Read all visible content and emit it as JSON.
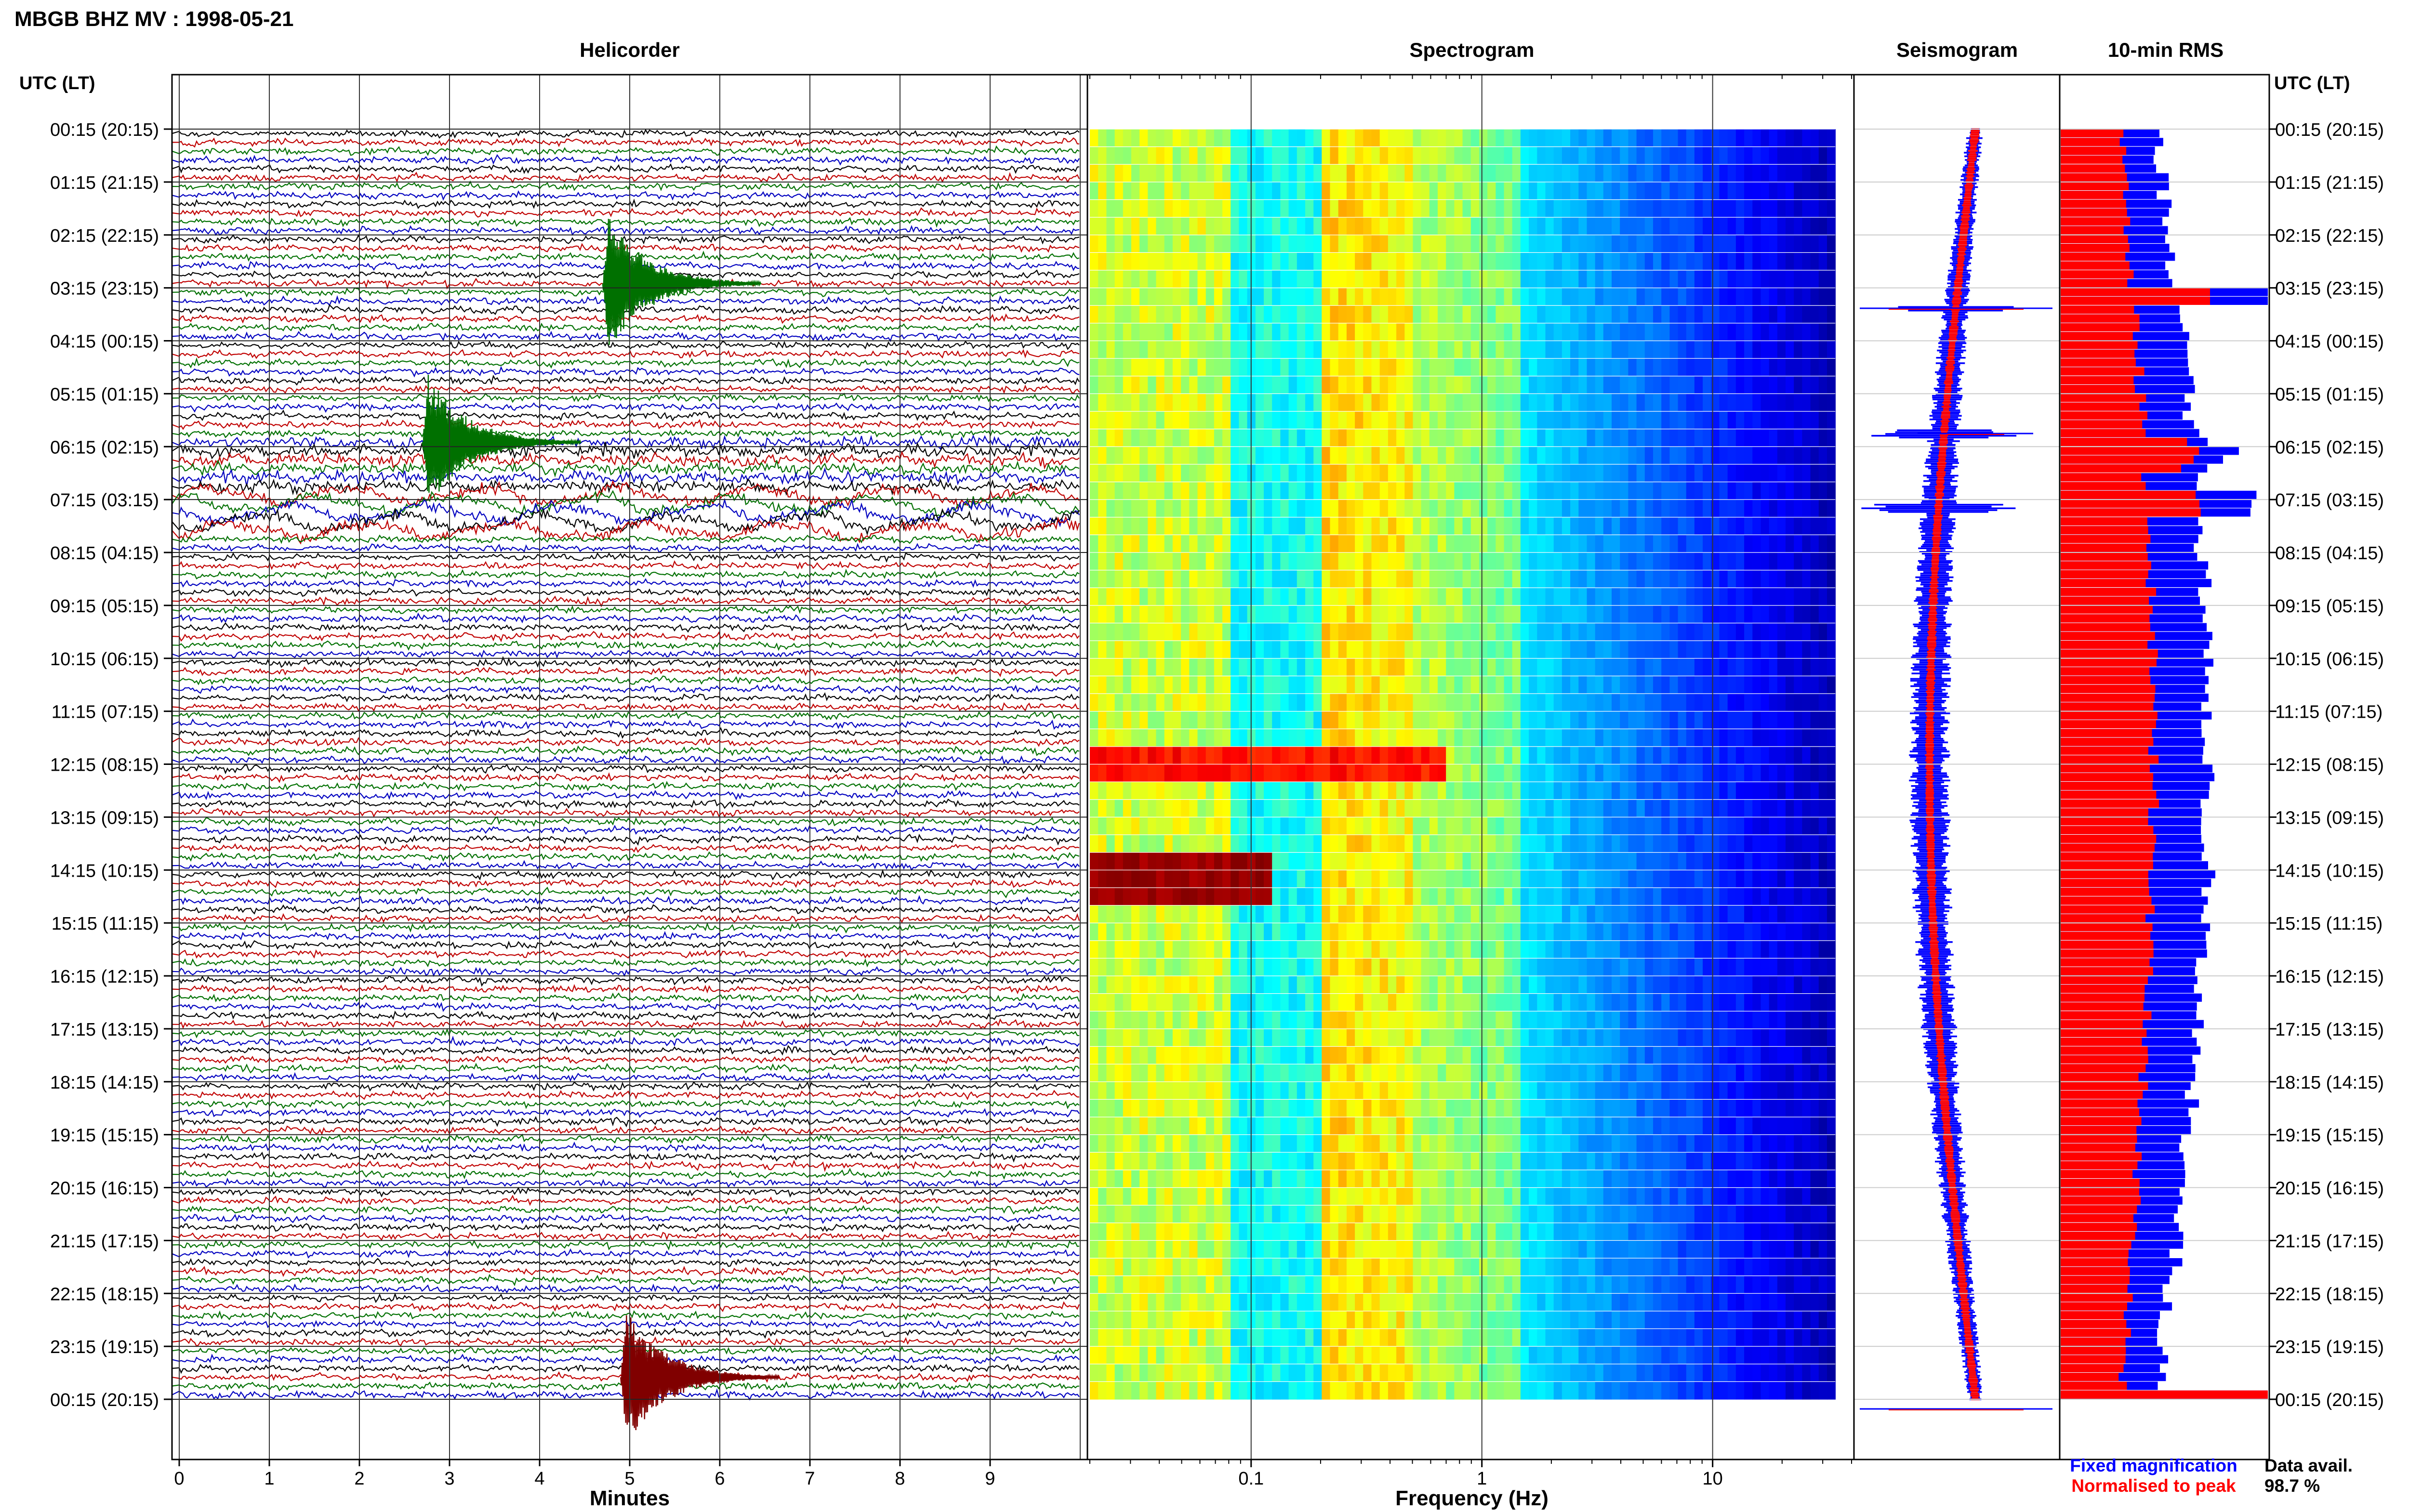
{
  "figure": {
    "title": "MBGB BHZ MV : 1998-05-21",
    "utc_label_left": "UTC (LT)",
    "utc_label_right": "UTC (LT)",
    "hour_labels": [
      "00:15 (20:15)",
      "01:15 (21:15)",
      "02:15 (22:15)",
      "03:15 (23:15)",
      "04:15 (00:15)",
      "05:15 (01:15)",
      "06:15 (02:15)",
      "07:15 (03:15)",
      "08:15 (04:15)",
      "09:15 (05:15)",
      "10:15 (06:15)",
      "11:15 (07:15)",
      "12:15 (08:15)",
      "13:15 (09:15)",
      "14:15 (10:15)",
      "15:15 (11:15)",
      "16:15 (12:15)",
      "17:15 (13:15)",
      "18:15 (14:15)",
      "19:15 (15:15)",
      "20:15 (16:15)",
      "21:15 (17:15)",
      "22:15 (18:15)",
      "23:15 (19:15)",
      "00:15 (20:15)"
    ],
    "legend": {
      "fixed": "Fixed magnification",
      "normalised": "Normalised to peak",
      "fixed_color": "#0000ff",
      "normalised_color": "#ff0000"
    },
    "data_avail_label": "Data avail.",
    "data_avail_value": "98.7 %"
  },
  "chart_data": [
    {
      "type": "line",
      "title": "Helicorder",
      "xlabel": "Minutes",
      "x_ticks": [
        "0",
        "1",
        "2",
        "3",
        "4",
        "5",
        "6",
        "7",
        "8",
        "9"
      ],
      "xlim": [
        0,
        10
      ],
      "trace_colors": [
        "#000000",
        "#c00000",
        "#007000",
        "#0000c0"
      ],
      "traces": 144,
      "events": [
        {
          "time": "03:05",
          "minute": 4.7,
          "color": "#007000"
        },
        {
          "time": "06:05",
          "minute": 2.7,
          "color": "#007000"
        },
        {
          "time": "23:45",
          "minute": 4.9,
          "color": "#800000"
        }
      ]
    },
    {
      "type": "heatmap",
      "title": "Spectrogram",
      "xlabel": "Frequency (Hz)",
      "x_scale": "log",
      "xlim": [
        0.02,
        40
      ],
      "x_ticks": [
        "0.1",
        "1",
        "10"
      ]
    },
    {
      "type": "line",
      "title": "Seismogram"
    },
    {
      "type": "bar",
      "title": "10-min RMS",
      "series": [
        {
          "color": "#0000ff"
        },
        {
          "color": "#ff0000"
        }
      ]
    }
  ]
}
